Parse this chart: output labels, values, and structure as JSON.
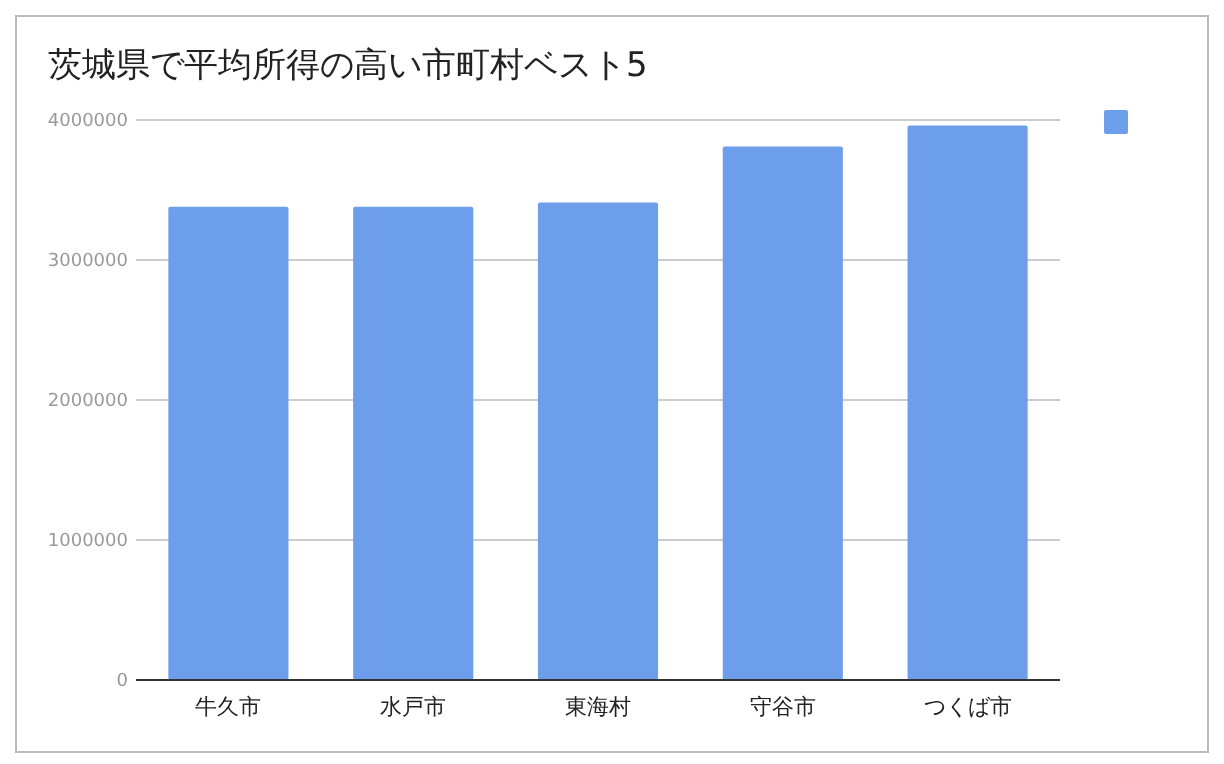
{
  "chart_data": {
    "type": "bar",
    "title": "茨城県で平均所得の高い市町村ベスト5",
    "categories": [
      "牛久市",
      "水戸市",
      "東海村",
      "守谷市",
      "つくば市"
    ],
    "series": [
      {
        "color": "#6d9eeb",
        "values": [
          3380000,
          3380000,
          3410000,
          3810000,
          3960000
        ]
      }
    ],
    "ylim": [
      0,
      4000000
    ],
    "yticks": [
      0,
      1000000,
      2000000,
      3000000,
      4000000
    ],
    "grid": "y"
  }
}
